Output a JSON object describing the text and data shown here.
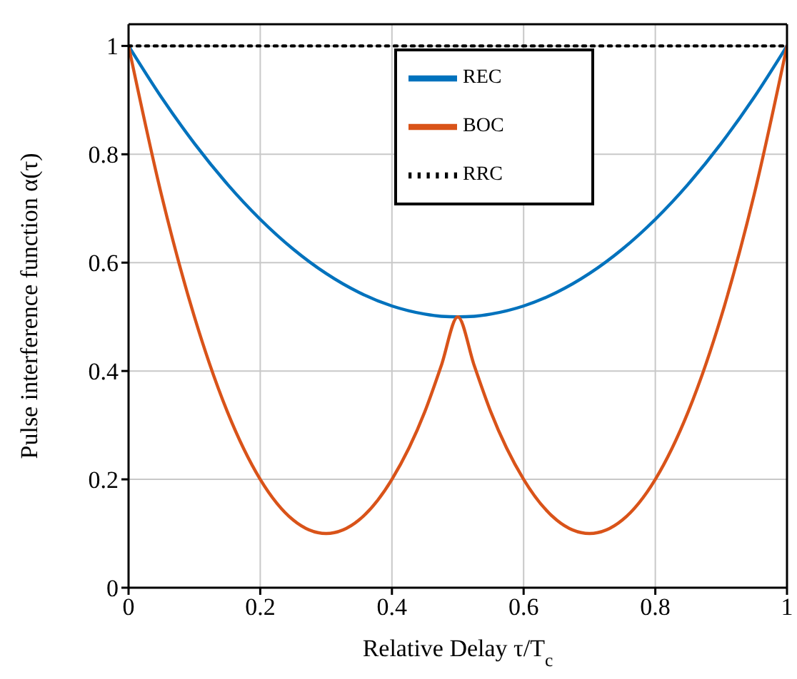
{
  "chart_data": {
    "type": "line",
    "xlabel": "Relative Delay τ/T$_{c}$",
    "ylabel": "Pulse interference function α(τ)",
    "xlim": [
      0,
      1
    ],
    "ylim": [
      0,
      1.04
    ],
    "xticks": [
      0,
      0.2,
      0.4,
      0.6,
      0.8,
      1
    ],
    "yticks": [
      0,
      0.2,
      0.4,
      0.6,
      0.8,
      1
    ],
    "grid": true,
    "legend": "top",
    "marker": "none",
    "line_style": "solid",
    "x": [
      0,
      0.05,
      0.1,
      0.15,
      0.2,
      0.25,
      0.3,
      0.35,
      0.4,
      0.45,
      0.475,
      0.5,
      0.525,
      0.55,
      0.6,
      0.65,
      0.7,
      0.75,
      0.8,
      0.85,
      0.9,
      0.95,
      1
    ],
    "series": [
      {
        "name": "REC",
        "color": "#0072bd",
        "values": [
          1,
          0.905,
          0.82,
          0.745,
          0.68,
          0.625,
          0.58,
          0.545,
          0.52,
          0.505,
          0.501,
          0.5,
          0.501,
          0.505,
          0.52,
          0.545,
          0.58,
          0.625,
          0.68,
          0.745,
          0.82,
          0.905,
          1
        ]
      },
      {
        "name": "BOC",
        "color": "#d95319",
        "values": [
          1,
          0.725,
          0.5,
          0.325,
          0.2,
          0.125,
          0.1,
          0.125,
          0.2,
          0.325,
          0.41,
          0.5,
          0.41,
          0.325,
          0.2,
          0.125,
          0.1,
          0.125,
          0.2,
          0.325,
          0.5,
          0.725,
          1
        ]
      },
      {
        "name": "RRC",
        "color": "#000000",
        "line_style": "dotted",
        "values": [
          1,
          1,
          1,
          1,
          1,
          1,
          1,
          1,
          1,
          1,
          1,
          1,
          1,
          1,
          1,
          1,
          1,
          1,
          1,
          1,
          1,
          1,
          1
        ]
      }
    ]
  }
}
